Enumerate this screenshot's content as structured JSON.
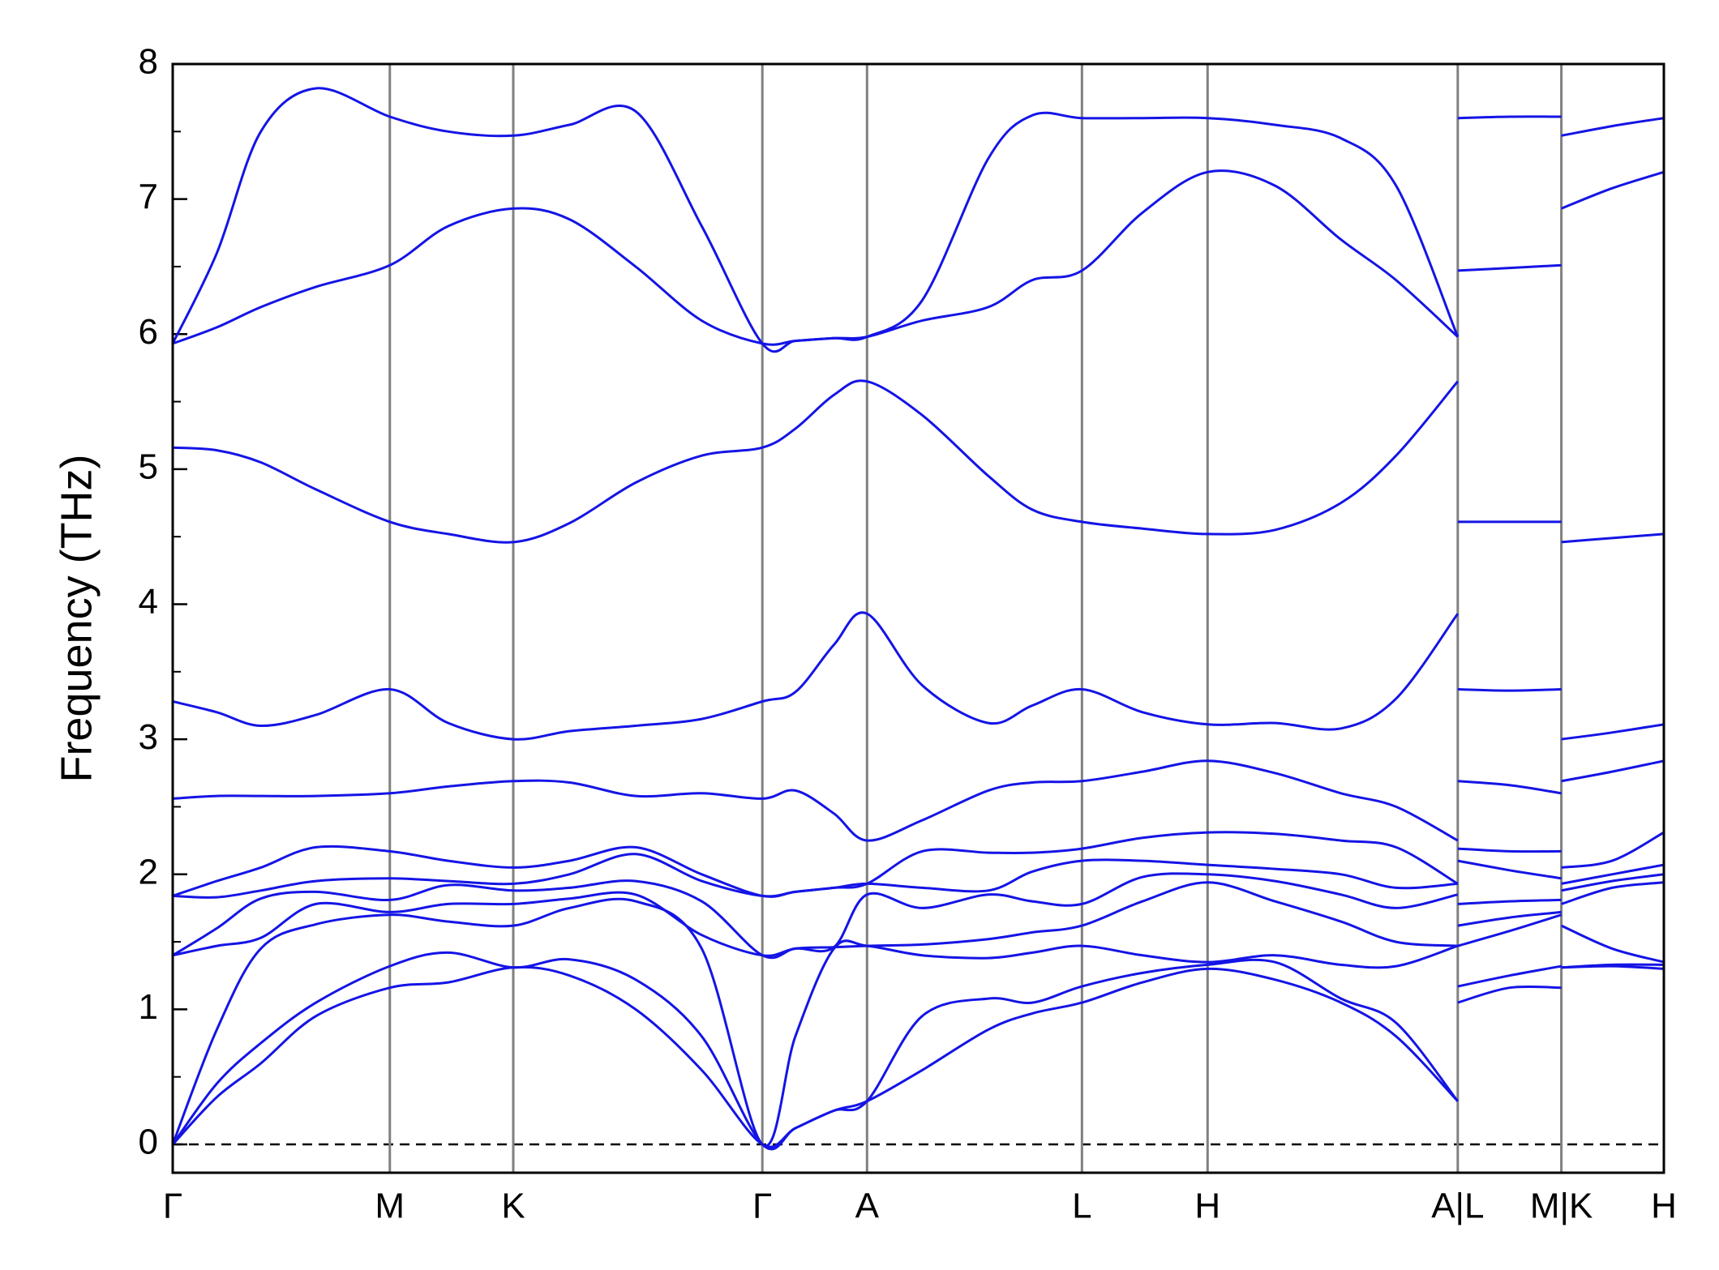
{
  "chart_data": {
    "type": "line",
    "ylabel": "Frequency (THz)",
    "color": "#1414e6",
    "xlim": [
      0,
      1353
    ],
    "ylim": [
      -0.21,
      8
    ],
    "yticks": [
      0,
      1,
      2,
      3,
      4,
      5,
      6,
      7,
      8
    ],
    "xticks": [
      {
        "value": 0,
        "label": "Γ"
      },
      {
        "value": 197,
        "label": "M"
      },
      {
        "value": 309,
        "label": "K"
      },
      {
        "value": 535,
        "label": "Γ"
      },
      {
        "value": 630,
        "label": "A"
      },
      {
        "value": 825,
        "label": "L"
      },
      {
        "value": 939,
        "label": "H"
      },
      {
        "value": 1166,
        "label": "A|L"
      },
      {
        "value": 1260,
        "label": "M|K"
      },
      {
        "value": 1353,
        "label": "H"
      }
    ],
    "x": [
      0,
      40,
      80,
      130,
      197,
      250,
      309,
      360,
      420,
      480,
      535,
      565,
      600,
      630,
      680,
      740,
      780,
      825,
      880,
      939,
      1000,
      1060,
      1110,
      1166,
      1166,
      1166,
      1213,
      1260,
      1260,
      1260,
      1306,
      1353
    ],
    "series": [
      {
        "values": [
          0,
          0.35,
          0.6,
          0.95,
          1.16,
          1.2,
          1.31,
          1.25,
          1.0,
          0.55,
          0,
          0.12,
          0.25,
          0.32,
          0.55,
          0.85,
          0.97,
          1.05,
          1.2,
          1.3,
          1.22,
          1.05,
          0.8,
          0.32,
          null,
          1.05,
          1.16,
          1.16,
          null,
          1.31,
          1.32,
          1.3
        ]
      },
      {
        "values": [
          0,
          0.45,
          0.75,
          1.05,
          1.32,
          1.42,
          1.31,
          1.37,
          1.22,
          0.8,
          0,
          0.12,
          0.25,
          0.32,
          0.95,
          1.08,
          1.05,
          1.17,
          1.27,
          1.33,
          1.35,
          1.08,
          0.9,
          0.32,
          null,
          1.17,
          1.25,
          1.32,
          null,
          1.31,
          1.33,
          1.33
        ]
      },
      {
        "values": [
          0,
          0.85,
          1.45,
          1.63,
          1.7,
          1.65,
          1.62,
          1.75,
          1.8,
          1.45,
          0,
          0.8,
          1.45,
          1.47,
          1.4,
          1.38,
          1.42,
          1.47,
          1.4,
          1.35,
          1.4,
          1.33,
          1.32,
          1.47,
          null,
          1.47,
          1.58,
          1.7,
          null,
          1.62,
          1.45,
          1.35
        ]
      },
      {
        "values": [
          1.4,
          1.47,
          1.53,
          1.78,
          1.72,
          1.78,
          1.78,
          1.82,
          1.85,
          1.55,
          1.4,
          1.45,
          1.46,
          1.47,
          1.48,
          1.52,
          1.57,
          1.62,
          1.8,
          1.94,
          1.8,
          1.65,
          1.5,
          1.47,
          null,
          1.62,
          1.68,
          1.72,
          null,
          1.78,
          1.9,
          1.94
        ]
      },
      {
        "values": [
          1.4,
          1.6,
          1.82,
          1.87,
          1.81,
          1.92,
          1.88,
          1.9,
          1.95,
          1.8,
          1.4,
          1.45,
          1.46,
          1.85,
          1.75,
          1.85,
          1.8,
          1.78,
          1.98,
          2.0,
          1.95,
          1.85,
          1.75,
          1.85,
          null,
          1.78,
          1.8,
          1.81,
          null,
          1.88,
          1.95,
          2.0
        ]
      },
      {
        "values": [
          1.84,
          1.83,
          1.88,
          1.95,
          1.97,
          1.95,
          1.93,
          2.0,
          2.15,
          1.95,
          1.84,
          1.87,
          1.9,
          1.93,
          1.9,
          1.88,
          2.02,
          2.1,
          2.1,
          2.07,
          2.04,
          2.0,
          1.9,
          1.93,
          null,
          2.1,
          2.03,
          1.97,
          null,
          1.93,
          2.0,
          2.07
        ]
      },
      {
        "values": [
          1.84,
          1.95,
          2.05,
          2.2,
          2.17,
          2.1,
          2.05,
          2.1,
          2.2,
          2.0,
          1.84,
          1.87,
          1.9,
          1.93,
          2.17,
          2.16,
          2.16,
          2.19,
          2.27,
          2.31,
          2.3,
          2.25,
          2.2,
          1.93,
          null,
          2.19,
          2.17,
          2.17,
          null,
          2.05,
          2.1,
          2.31
        ]
      },
      {
        "values": [
          2.56,
          2.58,
          2.58,
          2.58,
          2.6,
          2.65,
          2.69,
          2.68,
          2.58,
          2.6,
          2.56,
          2.62,
          2.45,
          2.25,
          2.4,
          2.62,
          2.68,
          2.69,
          2.76,
          2.84,
          2.75,
          2.6,
          2.5,
          2.25,
          null,
          2.69,
          2.66,
          2.6,
          null,
          2.69,
          2.76,
          2.84
        ]
      },
      {
        "values": [
          3.28,
          3.2,
          3.1,
          3.18,
          3.37,
          3.12,
          3.0,
          3.06,
          3.1,
          3.15,
          3.28,
          3.35,
          3.7,
          3.93,
          3.4,
          3.12,
          3.25,
          3.37,
          3.2,
          3.11,
          3.12,
          3.08,
          3.3,
          3.93,
          null,
          3.37,
          3.36,
          3.37,
          null,
          3.0,
          3.05,
          3.11
        ]
      },
      {
        "values": [
          5.16,
          5.14,
          5.05,
          4.85,
          4.61,
          4.52,
          4.46,
          4.6,
          4.9,
          5.1,
          5.16,
          5.3,
          5.55,
          5.65,
          5.4,
          4.95,
          4.7,
          4.61,
          4.56,
          4.52,
          4.55,
          4.75,
          5.1,
          5.65,
          null,
          4.61,
          4.61,
          4.61,
          null,
          4.46,
          4.49,
          4.52
        ]
      },
      {
        "values": [
          5.93,
          6.05,
          6.2,
          6.35,
          6.51,
          6.8,
          6.93,
          6.85,
          6.5,
          6.1,
          5.93,
          5.95,
          5.97,
          5.98,
          6.1,
          6.2,
          6.4,
          6.47,
          6.9,
          7.2,
          7.1,
          6.7,
          6.4,
          5.98,
          null,
          6.47,
          6.49,
          6.51,
          null,
          6.93,
          7.08,
          7.2
        ]
      },
      {
        "values": [
          5.93,
          6.6,
          7.5,
          7.82,
          7.61,
          7.5,
          7.47,
          7.55,
          7.65,
          6.8,
          5.93,
          5.95,
          5.97,
          5.98,
          6.25,
          7.3,
          7.62,
          7.6,
          7.6,
          7.6,
          7.55,
          7.45,
          7.1,
          5.98,
          null,
          7.6,
          7.61,
          7.61,
          null,
          7.47,
          7.54,
          7.6
        ]
      }
    ]
  }
}
